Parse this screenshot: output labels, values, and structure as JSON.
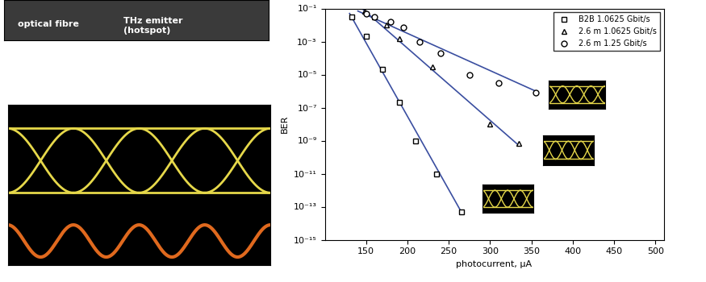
{
  "chart_data": {
    "type": "scatter",
    "x_label": "photocurrent, µA",
    "y_label": "BER",
    "log": "y",
    "legend": "upper right",
    "xlim": [
      100,
      510
    ],
    "xticks": [
      150,
      200,
      250,
      300,
      350,
      400,
      450,
      500
    ],
    "ylim": [
      1e-15,
      0.1
    ],
    "yticks": [
      {
        "value": 1e-15,
        "label": "10⁻¹⁵"
      },
      {
        "value": 1e-13,
        "label": "10⁻¹³"
      },
      {
        "value": 1e-11,
        "label": "10⁻¹¹"
      },
      {
        "value": 1e-09,
        "label": "10⁻⁹"
      },
      {
        "value": 1e-07,
        "label": "10⁻⁷"
      },
      {
        "value": 1e-05,
        "label": "10⁻⁵"
      },
      {
        "value": 0.001,
        "label": "10⁻³"
      },
      {
        "value": 0.1,
        "label": "10⁻¹"
      }
    ],
    "annotations": [
      "optical fibre",
      "THz emitter\n(hotspot)"
    ],
    "series": [
      {
        "name": "B2B 1.0625 Gbit/s",
        "color": "#000000",
        "marker": "square",
        "x": [
          133,
          150,
          170,
          190,
          210,
          235,
          265
        ],
        "values": [
          0.03,
          0.002,
          2e-05,
          2e-07,
          1e-09,
          1e-11,
          5e-14
        ],
        "fit": {
          "color": "#3a4ea0",
          "x": [
            130,
            265
          ],
          "values": [
            0.05,
            5e-14
          ]
        }
      },
      {
        "name": "2.6 m 1.0625 Gbit/s",
        "color": "#000000",
        "marker": "triangle",
        "x": [
          148,
          160,
          175,
          190,
          230,
          300,
          335
        ],
        "values": [
          0.07,
          0.03,
          0.01,
          0.0015,
          3e-05,
          1e-08,
          7e-10
        ],
        "fit": {
          "color": "#3a4ea0",
          "x": [
            145,
            335
          ],
          "values": [
            0.1,
            5e-10
          ]
        }
      },
      {
        "name": "2.6 m 1.25 Gbit/s",
        "color": "#000000",
        "marker": "circle",
        "x": [
          150,
          160,
          180,
          195,
          215,
          240,
          275,
          310,
          355
        ],
        "values": [
          0.05,
          0.03,
          0.015,
          0.007,
          0.001,
          0.0002,
          1e-05,
          3e-06,
          8e-07
        ],
        "fit": {
          "color": "#3a4ea0",
          "x": [
            140,
            355
          ],
          "values": [
            0.07,
            1e-06
          ]
        }
      }
    ]
  }
}
